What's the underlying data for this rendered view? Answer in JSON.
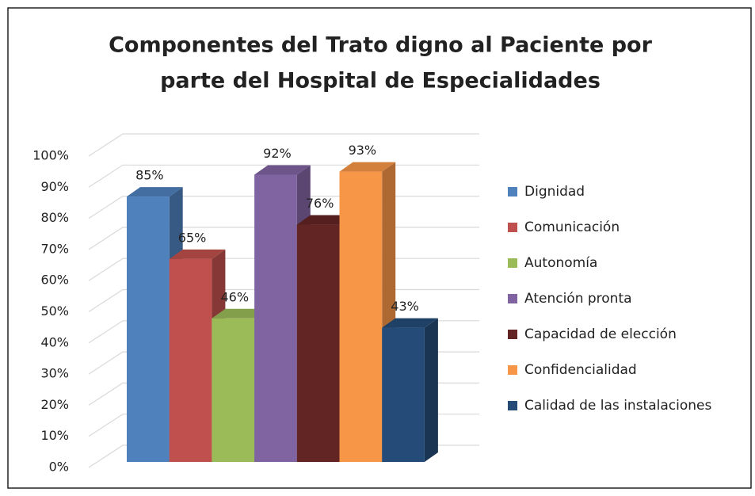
{
  "chart_data": {
    "type": "bar3d",
    "title": [
      "Componentes del Trato digno al Paciente por",
      "parte del Hospital de Especialidades"
    ],
    "ylim": [
      0,
      100
    ],
    "yticks": [
      {
        "value": 0,
        "label": "0%"
      },
      {
        "value": 10,
        "label": "10%"
      },
      {
        "value": 20,
        "label": "20%"
      },
      {
        "value": 30,
        "label": "30%"
      },
      {
        "value": 40,
        "label": "40%"
      },
      {
        "value": 50,
        "label": "50%"
      },
      {
        "value": 60,
        "label": "60%"
      },
      {
        "value": 70,
        "label": "70%"
      },
      {
        "value": 80,
        "label": "80%"
      },
      {
        "value": 90,
        "label": "90%"
      },
      {
        "value": 100,
        "label": "100%"
      }
    ],
    "grid": true,
    "legend": "right",
    "series": [
      {
        "name": "Dignidad",
        "color": "#4f81bd",
        "values": [
          85
        ],
        "value_labels": [
          "85%"
        ]
      },
      {
        "name": "Comunicación",
        "color": "#c0504d",
        "values": [
          65
        ],
        "value_labels": [
          "65%"
        ]
      },
      {
        "name": "Autonomía",
        "color": "#9bbb59",
        "values": [
          46
        ],
        "value_labels": [
          "46%"
        ]
      },
      {
        "name": "Atención pronta",
        "color": "#8064a2",
        "values": [
          92
        ],
        "value_labels": [
          "92%"
        ]
      },
      {
        "name": "Capacidad de elección",
        "color": "#632523",
        "values": [
          76
        ],
        "value_labels": [
          "76%"
        ]
      },
      {
        "name": "Confidencialidad",
        "color": "#f79646",
        "values": [
          93
        ],
        "value_labels": [
          "93%"
        ]
      },
      {
        "name": "Calidad de las instalaciones",
        "color": "#254c78",
        "values": [
          43
        ],
        "value_labels": [
          "43%"
        ]
      }
    ]
  }
}
